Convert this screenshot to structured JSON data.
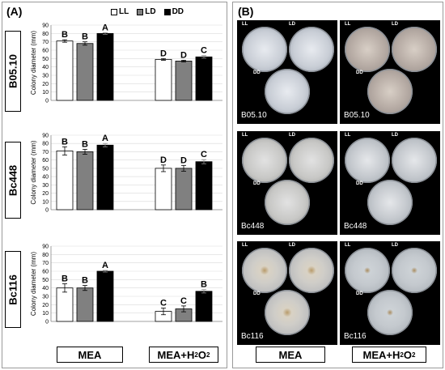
{
  "panel_a_label": "(A)",
  "panel_b_label": "(B)",
  "legend": [
    {
      "label": "LL",
      "color": "#ffffff"
    },
    {
      "label": "LD",
      "color": "#808080"
    },
    {
      "label": "DD",
      "color": "#000000"
    }
  ],
  "strains": [
    "B05.10",
    "Bc448",
    "Bc116"
  ],
  "media": [
    "MEA",
    "MEA+H2O2"
  ],
  "bottom_labels": {
    "mea": "MEA",
    "mea_h2o2_main": "MEA+H",
    "mea_h2o2_sub": "2",
    "mea_h2o2_tail": "O",
    "mea_h2o2_sub2": "2"
  },
  "chart_data": [
    {
      "type": "bar",
      "title": "",
      "strain": "B05.10",
      "ylabel": "Colony diameter (mm)",
      "ylim": [
        0,
        90
      ],
      "yticks": [
        0,
        10,
        20,
        30,
        40,
        50,
        60,
        70,
        80,
        90
      ],
      "categories": [
        "MEA",
        "MEA+H2O2"
      ],
      "series": [
        {
          "name": "LL",
          "values": [
            71,
            49
          ],
          "errors": [
            1.5,
            1.0
          ],
          "letters": [
            "B",
            "D"
          ]
        },
        {
          "name": "LD",
          "values": [
            68,
            47
          ],
          "errors": [
            2.0,
            1.0
          ],
          "letters": [
            "B",
            "D"
          ]
        },
        {
          "name": "DD",
          "values": [
            80,
            52
          ],
          "errors": [
            1.0,
            1.5
          ],
          "letters": [
            "A",
            "C"
          ]
        }
      ]
    },
    {
      "type": "bar",
      "title": "",
      "strain": "Bc448",
      "ylabel": "Colony diameter (mm)",
      "ylim": [
        0,
        90
      ],
      "yticks": [
        0,
        10,
        20,
        30,
        40,
        50,
        60,
        70,
        80,
        90
      ],
      "categories": [
        "MEA",
        "MEA+H2O2"
      ],
      "series": [
        {
          "name": "LL",
          "values": [
            71,
            50
          ],
          "errors": [
            5.0,
            4.0
          ],
          "letters": [
            "B",
            "D"
          ]
        },
        {
          "name": "LD",
          "values": [
            70,
            50
          ],
          "errors": [
            3.0,
            3.5
          ],
          "letters": [
            "B",
            "D"
          ]
        },
        {
          "name": "DD",
          "values": [
            78,
            58
          ],
          "errors": [
            2.0,
            2.5
          ],
          "letters": [
            "A",
            "C"
          ]
        }
      ]
    },
    {
      "type": "bar",
      "title": "",
      "strain": "Bc116",
      "ylabel": "Colony diameter (mm)",
      "ylim": [
        0,
        90
      ],
      "yticks": [
        0,
        10,
        20,
        30,
        40,
        50,
        60,
        70,
        80,
        90
      ],
      "categories": [
        "MEA",
        "MEA+H2O2"
      ],
      "series": [
        {
          "name": "LL",
          "values": [
            40,
            12
          ],
          "errors": [
            5.0,
            4.0
          ],
          "letters": [
            "B",
            "C"
          ]
        },
        {
          "name": "LD",
          "values": [
            40,
            15
          ],
          "errors": [
            3.0,
            3.5
          ],
          "letters": [
            "B",
            "C"
          ]
        },
        {
          "name": "DD",
          "values": [
            60,
            36
          ],
          "errors": [
            1.0,
            2.0
          ],
          "letters": [
            "A",
            "B"
          ]
        }
      ]
    }
  ],
  "photos": {
    "plate_labels": [
      "LL",
      "LD",
      "DD"
    ],
    "captions": [
      [
        "B05.10",
        "B05.10"
      ],
      [
        "Bc448",
        "Bc448"
      ],
      [
        "Bc116",
        "Bc116"
      ]
    ]
  }
}
